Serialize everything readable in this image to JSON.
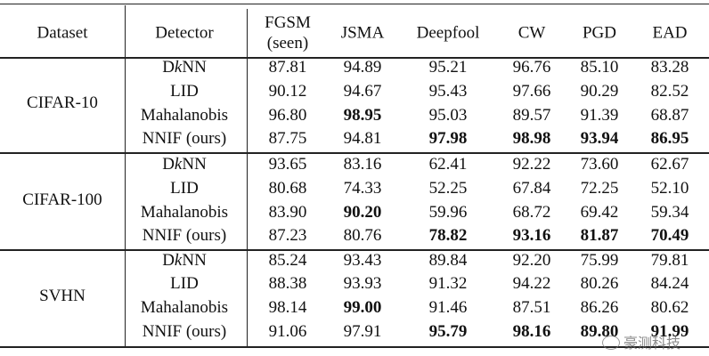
{
  "columns": [
    "Dataset",
    "Detector",
    "FGSM\n(seen)",
    "JSMA",
    "Deepfool",
    "CW",
    "PGD",
    "EAD"
  ],
  "datasets": [
    {
      "name": "CIFAR-10",
      "rows": [
        {
          "detector": "DkNN",
          "values": [
            "87.81",
            "94.89",
            "95.21",
            "96.76",
            "85.10",
            "83.28"
          ],
          "bold": []
        },
        {
          "detector": "LID",
          "values": [
            "90.12",
            "94.67",
            "95.43",
            "97.66",
            "90.29",
            "82.52"
          ],
          "bold": []
        },
        {
          "detector": "Mahalanobis",
          "values": [
            "96.80",
            "98.95",
            "95.03",
            "89.57",
            "91.39",
            "68.87"
          ],
          "bold": [
            1
          ]
        },
        {
          "detector": "NNIF (ours)",
          "values": [
            "87.75",
            "94.81",
            "97.98",
            "98.98",
            "93.94",
            "86.95"
          ],
          "bold": [
            2,
            3,
            4,
            5
          ]
        }
      ]
    },
    {
      "name": "CIFAR-100",
      "rows": [
        {
          "detector": "DkNN",
          "values": [
            "93.65",
            "83.16",
            "62.41",
            "92.22",
            "73.60",
            "62.67"
          ],
          "bold": []
        },
        {
          "detector": "LID",
          "values": [
            "80.68",
            "74.33",
            "52.25",
            "67.84",
            "72.25",
            "52.10"
          ],
          "bold": []
        },
        {
          "detector": "Mahalanobis",
          "values": [
            "83.90",
            "90.20",
            "59.96",
            "68.72",
            "69.42",
            "59.34"
          ],
          "bold": [
            1
          ]
        },
        {
          "detector": "NNIF (ours)",
          "values": [
            "87.23",
            "80.76",
            "78.82",
            "93.16",
            "81.87",
            "70.49"
          ],
          "bold": [
            2,
            3,
            4,
            5
          ]
        }
      ]
    },
    {
      "name": "SVHN",
      "rows": [
        {
          "detector": "DkNN",
          "values": [
            "85.24",
            "93.43",
            "89.84",
            "92.20",
            "75.99",
            "79.81"
          ],
          "bold": []
        },
        {
          "detector": "LID",
          "values": [
            "88.38",
            "93.93",
            "91.32",
            "94.22",
            "80.26",
            "84.24"
          ],
          "bold": []
        },
        {
          "detector": "Mahalanobis",
          "values": [
            "98.14",
            "99.00",
            "91.46",
            "87.51",
            "86.26",
            "80.62"
          ],
          "bold": [
            1
          ]
        },
        {
          "detector": "NNIF (ours)",
          "values": [
            "91.06",
            "97.91",
            "95.79",
            "98.16",
            "89.80",
            "91.99"
          ],
          "bold": [
            2,
            3,
            4,
            5
          ]
        }
      ]
    }
  ],
  "watermark": "豪测科技"
}
